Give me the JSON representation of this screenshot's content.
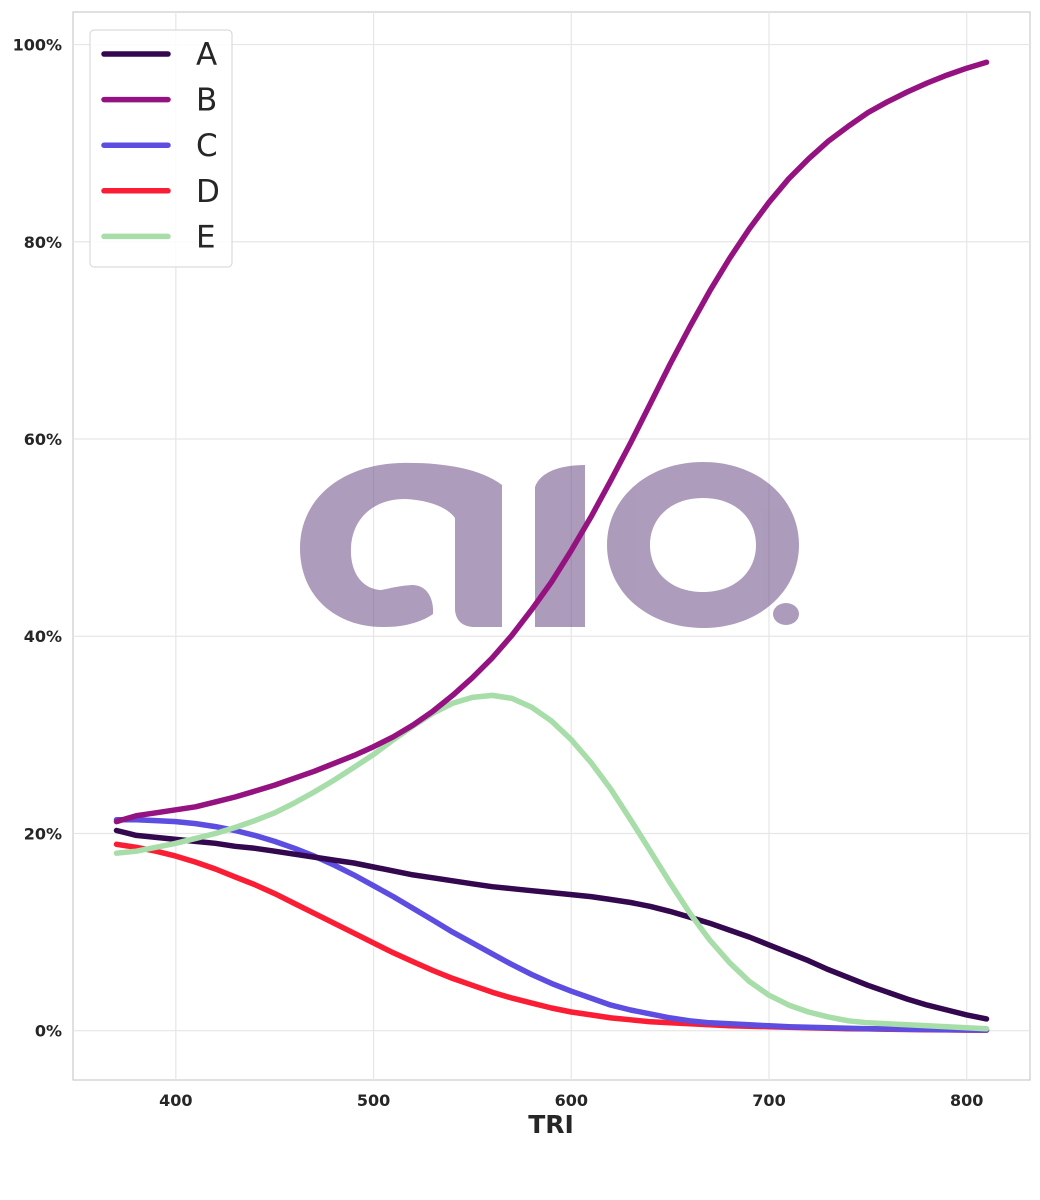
{
  "chart_data": {
    "type": "line",
    "xlabel": "TRI",
    "ylabel": "",
    "xlim": [
      348,
      832
    ],
    "ylim": [
      -0.05,
      1.033
    ],
    "x_ticks": [
      400,
      500,
      600,
      700,
      800
    ],
    "y_ticks": [
      0,
      0.2,
      0.4,
      0.6,
      0.8,
      1.0
    ],
    "x_tick_labels": [
      "400",
      "500",
      "600",
      "700",
      "800"
    ],
    "y_tick_labels": [
      "0%",
      "20%",
      "40%",
      "60%",
      "80%",
      "100%"
    ],
    "y_format": "percent",
    "grid": true,
    "legend_position": "top-left",
    "x": [
      370,
      380,
      390,
      400,
      410,
      420,
      430,
      440,
      450,
      460,
      470,
      480,
      490,
      500,
      510,
      520,
      530,
      540,
      550,
      560,
      570,
      580,
      590,
      600,
      610,
      620,
      630,
      640,
      650,
      660,
      670,
      680,
      690,
      700,
      710,
      720,
      730,
      740,
      750,
      760,
      770,
      780,
      790,
      800,
      810
    ],
    "series": [
      {
        "name": "A",
        "color": "#33084e",
        "values": [
          0.203,
          0.198,
          0.196,
          0.194,
          0.192,
          0.19,
          0.187,
          0.185,
          0.182,
          0.179,
          0.176,
          0.173,
          0.17,
          0.166,
          0.162,
          0.158,
          0.155,
          0.152,
          0.149,
          0.146,
          0.144,
          0.142,
          0.14,
          0.138,
          0.136,
          0.133,
          0.13,
          0.126,
          0.121,
          0.115,
          0.109,
          0.102,
          0.095,
          0.087,
          0.079,
          0.071,
          0.062,
          0.054,
          0.046,
          0.039,
          0.032,
          0.026,
          0.021,
          0.016,
          0.012
        ]
      },
      {
        "name": "B",
        "color": "#951281",
        "values": [
          0.212,
          0.218,
          0.221,
          0.224,
          0.227,
          0.232,
          0.237,
          0.243,
          0.249,
          0.256,
          0.263,
          0.271,
          0.279,
          0.288,
          0.298,
          0.31,
          0.324,
          0.34,
          0.358,
          0.378,
          0.401,
          0.427,
          0.455,
          0.487,
          0.521,
          0.558,
          0.596,
          0.636,
          0.676,
          0.714,
          0.75,
          0.783,
          0.813,
          0.84,
          0.864,
          0.884,
          0.902,
          0.917,
          0.931,
          0.942,
          0.952,
          0.961,
          0.969,
          0.976,
          0.982
        ]
      },
      {
        "name": "C",
        "color": "#5d4de0",
        "values": [
          0.214,
          0.214,
          0.213,
          0.212,
          0.21,
          0.207,
          0.203,
          0.198,
          0.192,
          0.185,
          0.177,
          0.168,
          0.158,
          0.147,
          0.136,
          0.124,
          0.112,
          0.1,
          0.089,
          0.078,
          0.067,
          0.057,
          0.048,
          0.04,
          0.033,
          0.026,
          0.021,
          0.017,
          0.013,
          0.01,
          0.008,
          0.007,
          0.006,
          0.005,
          0.004,
          0.0035,
          0.003,
          0.0025,
          0.002,
          0.0018,
          0.0015,
          0.0012,
          0.001,
          0.0008,
          0.0006
        ]
      },
      {
        "name": "D",
        "color": "#fb1d34",
        "values": [
          0.189,
          0.186,
          0.182,
          0.177,
          0.171,
          0.164,
          0.156,
          0.148,
          0.139,
          0.129,
          0.119,
          0.109,
          0.099,
          0.089,
          0.079,
          0.07,
          0.061,
          0.053,
          0.046,
          0.039,
          0.033,
          0.028,
          0.023,
          0.019,
          0.016,
          0.013,
          0.011,
          0.009,
          0.008,
          0.007,
          0.006,
          0.005,
          0.0045,
          0.004,
          0.0035,
          0.003,
          0.0025,
          0.002,
          0.0018,
          0.0015,
          0.0012,
          0.001,
          0.0008,
          0.0006,
          0.0005
        ]
      },
      {
        "name": "E",
        "color": "#a7dda8",
        "values": [
          0.18,
          0.182,
          0.186,
          0.19,
          0.195,
          0.2,
          0.206,
          0.213,
          0.221,
          0.231,
          0.242,
          0.254,
          0.267,
          0.28,
          0.295,
          0.309,
          0.322,
          0.332,
          0.338,
          0.34,
          0.337,
          0.328,
          0.314,
          0.295,
          0.272,
          0.245,
          0.214,
          0.182,
          0.15,
          0.119,
          0.092,
          0.069,
          0.05,
          0.036,
          0.026,
          0.019,
          0.014,
          0.01,
          0.008,
          0.007,
          0.006,
          0.005,
          0.004,
          0.003,
          0.002
        ]
      }
    ],
    "watermark": "aio."
  }
}
